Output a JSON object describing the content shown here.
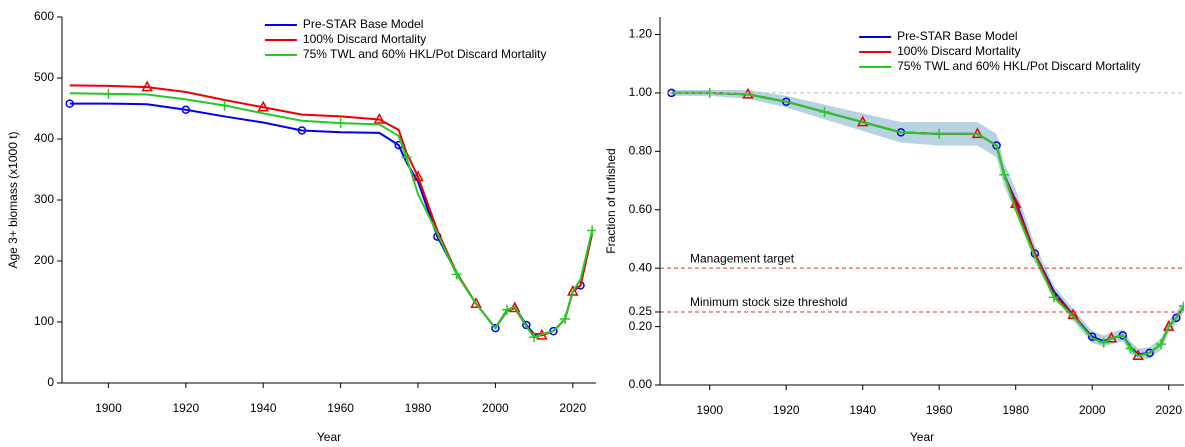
{
  "chart_data": [
    {
      "type": "line",
      "x_label": "Year",
      "y_label": "Age 3+ biomass (x1000 t)",
      "xlim": [
        1888,
        2026
      ],
      "ylim": [
        0,
        600
      ],
      "xticks": [
        1900,
        1920,
        1940,
        1960,
        1980,
        2000,
        2020
      ],
      "yticks": [
        0,
        100,
        200,
        300,
        400,
        500,
        600
      ],
      "legend": "upper right",
      "x": [
        1890,
        1900,
        1910,
        1920,
        1930,
        1940,
        1950,
        1960,
        1970,
        1975,
        1977,
        1980,
        1985,
        1990,
        1995,
        2000,
        2003,
        2005,
        2008,
        2010,
        2012,
        2015,
        2018,
        2020,
        2022,
        2025
      ],
      "series": [
        {
          "name": "Pre-STAR Base Model",
          "color": "#0000ee",
          "marker": "circle",
          "values": [
            458,
            458,
            457,
            448,
            437,
            427,
            414,
            411,
            410,
            390,
            362,
            330,
            240,
            180,
            130,
            90,
            120,
            125,
            95,
            80,
            80,
            85,
            105,
            150,
            160,
            245
          ]
        },
        {
          "name": "100% Discard Mortality",
          "color": "#ee0000",
          "marker": "triangle",
          "values": [
            488,
            487,
            485,
            477,
            464,
            452,
            440,
            437,
            432,
            415,
            378,
            338,
            250,
            180,
            130,
            90,
            118,
            123,
            93,
            78,
            78,
            85,
            105,
            150,
            160,
            245
          ]
        },
        {
          "name": "75% TWL and 60% HKL/Pot Discard Mortality",
          "color": "#22cc22",
          "marker": "plus",
          "values": [
            475,
            474,
            473,
            465,
            455,
            442,
            430,
            426,
            424,
            405,
            370,
            310,
            245,
            178,
            130,
            90,
            120,
            125,
            93,
            75,
            80,
            85,
            105,
            150,
            170,
            250
          ]
        }
      ]
    },
    {
      "type": "line",
      "x_label": "Year",
      "y_label": "Fraction of unfished",
      "xlim": [
        1887,
        2024
      ],
      "ylim": [
        0,
        1.26
      ],
      "xticks": [
        1900,
        1920,
        1940,
        1960,
        1980,
        2000,
        2020
      ],
      "yticks": [
        {
          "value": 0,
          "label": "0.00"
        },
        {
          "value": 0.2,
          "label": "0.20"
        },
        {
          "value": 0.25,
          "label": "0.25"
        },
        {
          "value": 0.4,
          "label": "0.40"
        },
        {
          "value": 0.6,
          "label": "0.60"
        },
        {
          "value": 0.8,
          "label": "0.80"
        },
        {
          "value": 1,
          "label": "1.00"
        },
        {
          "value": 1.2,
          "label": "1.20"
        }
      ],
      "legend": "upper right",
      "reference_lines": [
        {
          "value": 1,
          "color": "#bbbbbb"
        },
        {
          "value": 0.4,
          "color": "#e03030",
          "label": "Management target"
        },
        {
          "value": 0.25,
          "color": "#e03030",
          "label": "Minimum stock size threshold"
        }
      ],
      "interval_color": "#b7d3df",
      "x": [
        1890,
        1900,
        1910,
        1920,
        1930,
        1940,
        1950,
        1960,
        1970,
        1975,
        1977,
        1980,
        1985,
        1990,
        1995,
        2000,
        2003,
        2005,
        2008,
        2010,
        2012,
        2015,
        2018,
        2020,
        2022,
        2024
      ],
      "interval_lower": [
        0.99,
        0.99,
        0.98,
        0.95,
        0.91,
        0.87,
        0.83,
        0.82,
        0.82,
        0.78,
        0.68,
        0.59,
        0.42,
        0.3,
        0.22,
        0.145,
        0.13,
        0.14,
        0.15,
        0.11,
        0.085,
        0.09,
        0.12,
        0.18,
        0.21,
        0.25
      ],
      "interval_upper": [
        1.01,
        1.01,
        1.01,
        0.99,
        0.96,
        0.93,
        0.9,
        0.9,
        0.9,
        0.86,
        0.76,
        0.67,
        0.48,
        0.34,
        0.26,
        0.185,
        0.17,
        0.18,
        0.19,
        0.15,
        0.125,
        0.13,
        0.16,
        0.22,
        0.25,
        0.29
      ],
      "series": [
        {
          "name": "Pre-STAR Base Model",
          "color": "#0000ee",
          "marker": "circle",
          "values": [
            1.0,
            1.0,
            0.995,
            0.97,
            0.935,
            0.9,
            0.865,
            0.86,
            0.86,
            0.82,
            0.72,
            0.63,
            0.45,
            0.32,
            0.24,
            0.165,
            0.15,
            0.16,
            0.17,
            0.13,
            0.105,
            0.11,
            0.14,
            0.2,
            0.23,
            0.27
          ]
        },
        {
          "name": "100% Discard Mortality",
          "color": "#ee0000",
          "marker": "triangle",
          "values": [
            1.0,
            1.0,
            0.995,
            0.97,
            0.935,
            0.9,
            0.865,
            0.86,
            0.86,
            0.82,
            0.72,
            0.62,
            0.45,
            0.31,
            0.24,
            0.16,
            0.145,
            0.16,
            0.17,
            0.125,
            0.1,
            0.11,
            0.14,
            0.2,
            0.23,
            0.27
          ]
        },
        {
          "name": "75% TWL and 60% HKL/Pot Discard Mortality",
          "color": "#22cc22",
          "marker": "plus",
          "values": [
            1.0,
            1.0,
            0.995,
            0.97,
            0.935,
            0.9,
            0.865,
            0.86,
            0.86,
            0.82,
            0.72,
            0.6,
            0.44,
            0.3,
            0.235,
            0.16,
            0.145,
            0.16,
            0.17,
            0.125,
            0.1,
            0.11,
            0.14,
            0.2,
            0.23,
            0.27
          ]
        }
      ]
    }
  ]
}
